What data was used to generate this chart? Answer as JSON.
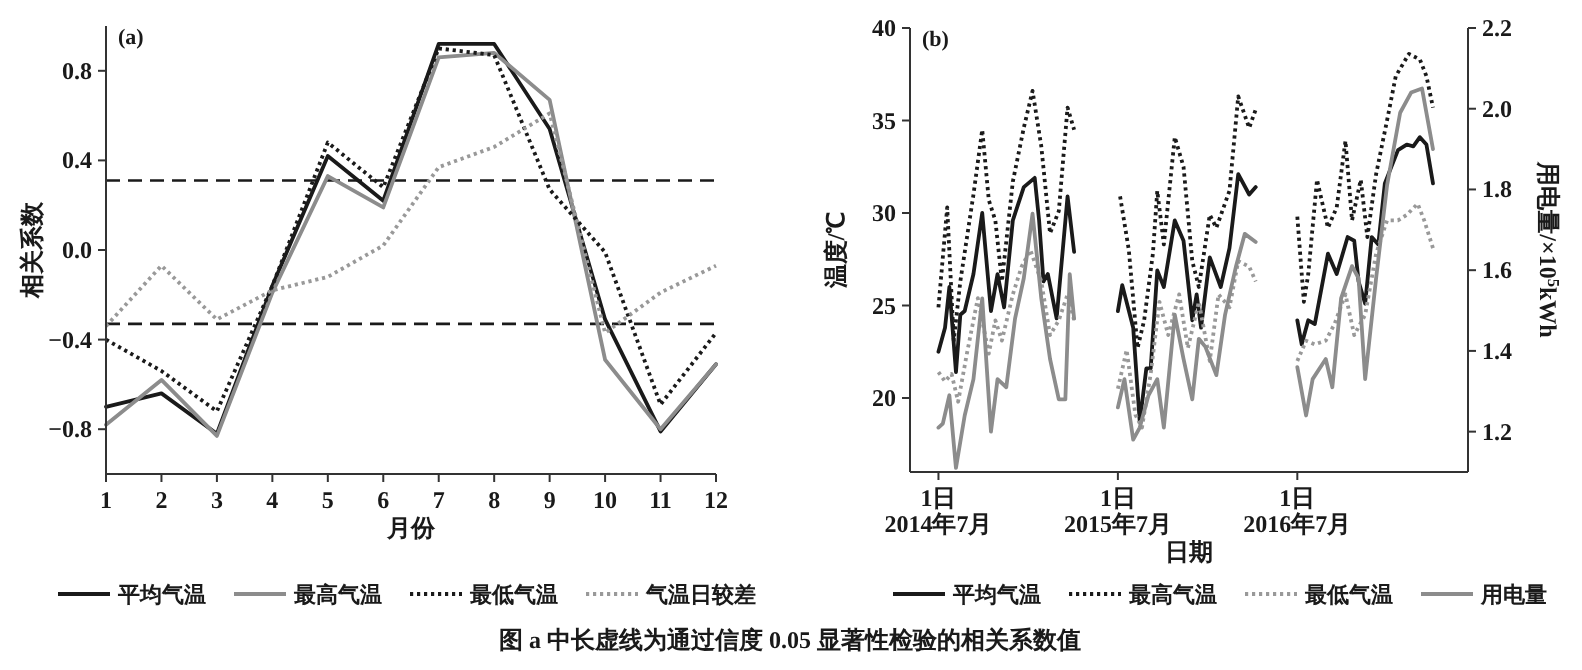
{
  "chart_data": [
    {
      "type": "line",
      "title": "(a)",
      "xlabel": "月份",
      "ylabel": "相关系数",
      "xlim": [
        1,
        12
      ],
      "xticks": [
        1,
        2,
        3,
        4,
        5,
        6,
        7,
        8,
        9,
        10,
        11,
        12
      ],
      "ylim": [
        -1.0,
        1.0
      ],
      "yticks": [
        {
          "value": -0.8,
          "label": "−0.8"
        },
        {
          "value": -0.4,
          "label": "−0.4"
        },
        {
          "value": 0,
          "label": "0.0"
        },
        {
          "value": 0.4,
          "label": "0.4"
        },
        {
          "value": 0.8,
          "label": "0.8"
        }
      ],
      "legend": "bottom",
      "x": [
        1,
        2,
        3,
        4,
        5,
        6,
        7,
        8,
        9,
        10,
        11,
        12
      ],
      "series": [
        {
          "name": "平均气温",
          "color": "#1a1a1a",
          "line_style": "solid",
          "values": [
            -0.7,
            -0.64,
            -0.82,
            -0.16,
            0.42,
            0.22,
            0.92,
            0.92,
            0.54,
            -0.31,
            -0.81,
            -0.51
          ]
        },
        {
          "name": "最高气温",
          "color": "#8c8c8c",
          "line_style": "solid",
          "values": [
            -0.78,
            -0.58,
            -0.83,
            -0.19,
            0.33,
            0.19,
            0.86,
            0.88,
            0.67,
            -0.49,
            -0.8,
            -0.51
          ]
        },
        {
          "name": "最低气温",
          "color": "#1a1a1a",
          "line_style": "dotted",
          "values": [
            -0.4,
            -0.54,
            -0.72,
            -0.16,
            0.48,
            0.28,
            0.9,
            0.87,
            0.27,
            -0.01,
            -0.69,
            -0.37
          ]
        },
        {
          "name": "气温日较差",
          "color": "#999999",
          "line_style": "dotted",
          "values": [
            -0.34,
            -0.07,
            -0.31,
            -0.18,
            -0.12,
            0.02,
            0.37,
            0.46,
            0.61,
            -0.37,
            -0.19,
            -0.07
          ]
        }
      ],
      "ref_lines": [
        {
          "axis": "y",
          "value": 0.31,
          "line_style": "dashed",
          "color": "#1a1a1a"
        },
        {
          "axis": "y",
          "value": -0.33,
          "line_style": "dashed",
          "color": "#1a1a1a"
        }
      ],
      "annotations": [
        "图 a 中长虚线为通过信度 0.05 显著性检验的相关系数值"
      ]
    },
    {
      "type": "line",
      "title": "(b)",
      "xlabel": "日期",
      "ylabel": "温度/℃",
      "y2label": "用电量/×10$^{5}$kWh",
      "ylim": [
        16,
        40
      ],
      "yticks": [
        20,
        25,
        30,
        35,
        40
      ],
      "y2lim": [
        1.1,
        2.2
      ],
      "y2ticks": [
        1.2,
        1.4,
        1.6,
        1.8,
        {
          "value": 2.0,
          "label": "2.0"
        },
        2.2
      ],
      "legend": "bottom",
      "categories": [
        "1日\n2014年7月",
        null,
        null,
        null,
        null,
        null,
        null,
        null,
        null,
        null,
        null,
        null,
        null,
        null,
        null,
        null,
        null,
        null,
        null,
        null,
        null,
        null,
        null,
        null,
        null,
        null,
        null,
        null,
        null,
        null,
        null,
        null,
        null,
        null,
        null,
        null,
        null,
        null,
        null,
        null,
        null,
        null,
        null,
        null,
        null,
        null,
        null,
        null,
        null,
        null,
        null,
        null,
        null,
        null,
        null,
        null,
        null,
        null,
        null,
        null,
        null,
        null,
        null,
        null,
        null,
        null,
        null,
        null,
        null,
        null,
        null,
        null,
        null,
        null,
        null,
        null,
        null,
        null,
        null,
        null,
        null,
        null,
        "1日\n2015年7月",
        null,
        null,
        null,
        null,
        null,
        null,
        null,
        null,
        null,
        null,
        null,
        null,
        null,
        null,
        null,
        null,
        null,
        null,
        null,
        null,
        null,
        null,
        null,
        null,
        null,
        null,
        null,
        null,
        null,
        null,
        null,
        null,
        null,
        null,
        null,
        null,
        null,
        null,
        null,
        null,
        null,
        null,
        null,
        null,
        null,
        null,
        null,
        null,
        null,
        null,
        null,
        null,
        null,
        null,
        null,
        null,
        null,
        null,
        null,
        null,
        null,
        null,
        null,
        null,
        null,
        null,
        null,
        null,
        null,
        null,
        null,
        null,
        null,
        null,
        null,
        null,
        null,
        null,
        null,
        null,
        null,
        "1日\n2016年7月",
        null,
        null,
        null,
        null,
        null,
        null,
        null,
        null,
        null,
        null,
        null,
        null,
        null,
        null,
        null,
        null,
        null,
        null,
        null,
        null,
        null,
        null,
        null,
        null,
        null,
        null,
        null,
        null,
        null,
        null,
        null,
        null,
        null,
        null,
        null,
        null,
        null,
        null,
        null,
        null,
        null,
        null,
        null,
        null,
        null,
        null,
        null,
        null,
        null,
        null,
        null,
        null,
        null,
        null,
        null,
        null,
        null,
        null,
        null,
        null,
        null,
        null
      ],
      "series": [
        {
          "name": "平均气温",
          "color": "#1a1a1a",
          "line_style": "solid",
          "values": [
            22.5,
            null,
            null,
            23.8,
            null,
            26.0,
            null,
            null,
            21.4,
            null,
            24.5,
            null,
            24.7,
            null,
            null,
            null,
            26.7,
            null,
            null,
            null,
            30.0,
            null,
            null,
            null,
            24.7,
            null,
            null,
            26.7,
            null,
            null,
            24.9,
            null,
            null,
            null,
            29.6,
            null,
            null,
            null,
            null,
            31.4,
            null,
            null,
            null,
            null,
            31.9,
            null,
            29.6,
            null,
            26.3,
            null,
            26.7,
            null,
            null,
            null,
            24.3,
            null,
            null,
            null,
            null,
            30.9,
            null,
            null,
            27.9,
            null,
            null,
            null,
            null,
            null,
            null,
            null,
            null,
            null,
            null,
            null,
            null,
            null,
            null,
            null,
            null,
            null,
            null,
            null,
            24.7,
            null,
            26.1,
            null,
            null,
            null,
            null,
            23.8,
            null,
            null,
            18.7,
            null,
            null,
            21.6,
            null,
            21.6,
            null,
            null,
            26.9,
            null,
            null,
            26.0,
            null,
            null,
            null,
            null,
            29.6,
            null,
            null,
            null,
            28.5,
            null,
            null,
            null,
            24.2,
            null,
            25.6,
            null,
            23.8,
            null,
            null,
            null,
            27.6,
            null,
            null,
            null,
            null,
            26.0,
            null,
            null,
            null,
            28.1,
            null,
            null,
            null,
            32.1,
            null,
            null,
            null,
            null,
            31.0,
            null,
            null,
            31.4,
            null,
            null,
            null,
            null,
            null,
            null,
            null,
            null,
            null,
            null,
            null,
            null,
            null,
            null,
            null,
            null,
            null,
            null,
            24.2,
            null,
            22.9,
            null,
            null,
            24.2,
            null,
            null,
            24.0,
            null,
            null,
            null,
            null,
            null,
            27.8,
            null,
            null,
            null,
            26.7,
            null,
            null,
            null,
            null,
            28.7,
            null,
            null,
            28.5,
            null,
            26.3,
            null,
            null,
            25.1,
            null,
            null,
            28.7,
            null,
            null,
            28.3,
            null,
            null,
            31.6,
            null,
            null,
            null,
            null,
            null,
            33.4,
            null,
            null,
            null,
            33.7,
            null,
            null,
            33.6,
            null,
            null,
            34.1,
            null,
            null,
            33.7,
            null,
            null,
            31.6
          ]
        },
        {
          "name": "最高气温",
          "color": "#1a1a1a",
          "line_style": "dotted",
          "values": [
            24.9,
            null,
            null,
            null,
            30.3,
            null,
            null,
            23.1,
            null,
            null,
            26.3,
            null,
            null,
            null,
            null,
            null,
            31.0,
            null,
            null,
            null,
            34.5,
            null,
            null,
            30.7,
            null,
            null,
            29.6,
            null,
            null,
            26.3,
            null,
            null,
            null,
            null,
            31.7,
            null,
            null,
            null,
            null,
            34.6,
            null,
            null,
            null,
            36.6,
            null,
            null,
            null,
            33.6,
            null,
            null,
            null,
            28.9,
            null,
            null,
            null,
            30.1,
            null,
            null,
            null,
            35.7,
            null,
            null,
            34.5,
            null,
            null,
            null,
            null,
            null,
            null,
            null,
            null,
            null,
            null,
            null,
            null,
            null,
            null,
            null,
            null,
            null,
            null,
            null,
            null,
            30.9,
            null,
            null,
            null,
            28.0,
            null,
            null,
            null,
            22.7,
            null,
            null,
            24.2,
            null,
            null,
            null,
            27.8,
            null,
            31.2,
            null,
            null,
            28.3,
            null,
            null,
            null,
            null,
            34.1,
            null,
            null,
            null,
            32.5,
            null,
            null,
            null,
            27.4,
            null,
            null,
            26.0,
            null,
            null,
            null,
            null,
            29.9,
            null,
            null,
            29.2,
            null,
            null,
            null,
            null,
            null,
            31.2,
            null,
            null,
            null,
            36.3,
            null,
            null,
            null,
            null,
            34.6,
            null,
            null,
            35.6,
            null,
            null,
            null,
            null,
            null,
            null,
            null,
            null,
            null,
            null,
            null,
            null,
            null,
            null,
            null,
            null,
            null,
            null,
            29.8,
            null,
            null,
            25.2,
            null,
            26.7,
            null,
            null,
            null,
            31.8,
            null,
            null,
            null,
            null,
            29.2,
            null,
            null,
            null,
            30.3,
            null,
            null,
            null,
            33.9,
            null,
            null,
            29.6,
            null,
            null,
            null,
            31.8,
            null,
            null,
            28.7,
            null,
            null,
            null,
            32.1,
            null,
            null,
            null,
            null,
            35.0,
            null,
            null,
            null,
            37.4,
            null,
            null,
            null,
            null,
            null,
            38.6,
            null,
            null,
            null,
            null,
            38.3,
            null,
            null,
            37.4,
            null,
            null,
            35.7
          ]
        },
        {
          "name": "最低气温",
          "color": "#999999",
          "line_style": "dotted",
          "values": [
            21.4,
            null,
            null,
            20.9,
            null,
            null,
            21.3,
            null,
            null,
            19.8,
            null,
            null,
            null,
            22.4,
            null,
            null,
            null,
            null,
            25.4,
            null,
            null,
            null,
            null,
            22.4,
            null,
            null,
            24.2,
            null,
            null,
            23.1,
            null,
            null,
            null,
            null,
            25.6,
            null,
            null,
            null,
            27.1,
            null,
            null,
            null,
            28.0,
            null,
            null,
            null,
            null,
            26.3,
            null,
            null,
            null,
            23.4,
            null,
            null,
            null,
            24.2,
            null,
            null,
            null,
            25.6,
            null,
            null,
            24.2,
            null,
            null,
            null,
            null,
            null,
            null,
            null,
            null,
            null,
            null,
            null,
            null,
            null,
            null,
            null,
            null,
            null,
            null,
            null,
            20.5,
            null,
            null,
            null,
            22.6,
            null,
            null,
            null,
            19.1,
            null,
            null,
            18.4,
            null,
            null,
            null,
            21.3,
            null,
            null,
            null,
            25.2,
            null,
            null,
            null,
            23.4,
            null,
            null,
            null,
            null,
            25.6,
            null,
            null,
            null,
            22.7,
            null,
            null,
            null,
            null,
            25.2,
            null,
            null,
            null,
            null,
            22.0,
            null,
            null,
            null,
            25.6,
            null,
            null,
            null,
            null,
            24.9,
            null,
            null,
            null,
            27.4,
            null,
            null,
            null,
            null,
            27.1,
            null,
            null,
            26.3,
            null,
            null,
            null,
            null,
            null,
            null,
            null,
            null,
            null,
            null,
            null,
            null,
            null,
            null,
            null,
            null,
            null,
            null,
            22.0,
            null,
            null,
            null,
            23.1,
            null,
            null,
            null,
            22.9,
            null,
            null,
            null,
            null,
            23.1,
            null,
            null,
            null,
            24.0,
            null,
            null,
            null,
            null,
            25.6,
            null,
            null,
            null,
            23.4,
            null,
            null,
            null,
            null,
            24.5,
            null,
            null,
            null,
            null,
            27.8,
            null,
            null,
            null,
            null,
            29.6,
            null,
            null,
            null,
            null,
            29.6,
            null,
            null,
            null,
            29.9,
            null,
            null,
            null,
            null,
            30.5,
            null,
            null,
            29.6,
            null,
            null,
            null,
            28.1
          ]
        },
        {
          "name": "用电量",
          "color": "#8c8c8c",
          "line_style": "solid",
          "axis": "y2",
          "values": [
            1.21,
            null,
            1.22,
            null,
            null,
            1.29,
            null,
            null,
            1.11,
            null,
            null,
            null,
            1.24,
            null,
            null,
            null,
            1.33,
            null,
            null,
            null,
            1.53,
            null,
            null,
            null,
            1.2,
            null,
            null,
            1.33,
            null,
            null,
            null,
            1.31,
            null,
            null,
            null,
            1.48,
            null,
            null,
            null,
            1.58,
            null,
            null,
            null,
            1.74,
            null,
            null,
            null,
            1.53,
            null,
            null,
            null,
            1.38,
            null,
            null,
            null,
            1.28,
            null,
            null,
            1.28,
            null,
            1.59,
            null,
            1.48,
            null,
            null,
            null,
            null,
            null,
            null,
            null,
            null,
            null,
            null,
            null,
            null,
            null,
            null,
            null,
            null,
            null,
            null,
            null,
            1.26,
            null,
            null,
            1.33,
            null,
            null,
            null,
            1.18,
            null,
            null,
            1.21,
            null,
            null,
            null,
            1.29,
            null,
            null,
            null,
            1.33,
            null,
            null,
            1.21,
            null,
            null,
            null,
            null,
            1.49,
            null,
            null,
            null,
            1.38,
            null,
            null,
            null,
            1.28,
            null,
            null,
            1.43,
            null,
            null,
            1.41,
            null,
            null,
            null,
            null,
            1.34,
            null,
            null,
            null,
            1.49,
            null,
            null,
            null,
            null,
            1.61,
            null,
            null,
            null,
            1.69,
            null,
            null,
            null,
            null,
            1.67,
            null,
            null,
            null,
            null,
            null,
            null,
            null,
            null,
            null,
            null,
            null,
            null,
            null,
            null,
            null,
            null,
            null,
            null,
            1.36,
            null,
            null,
            null,
            1.24,
            null,
            null,
            1.33,
            null,
            null,
            null,
            null,
            null,
            1.38,
            null,
            null,
            1.31,
            null,
            null,
            null,
            1.53,
            null,
            null,
            null,
            null,
            1.61,
            null,
            null,
            1.58,
            null,
            null,
            1.33,
            null,
            null,
            null,
            null,
            1.58,
            null,
            null,
            null,
            null,
            1.81,
            null,
            null,
            null,
            null,
            null,
            1.99,
            null,
            null,
            null,
            null,
            2.04,
            null,
            null,
            null,
            null,
            2.05,
            null,
            null,
            null,
            null,
            1.9
          ]
        }
      ]
    }
  ]
}
